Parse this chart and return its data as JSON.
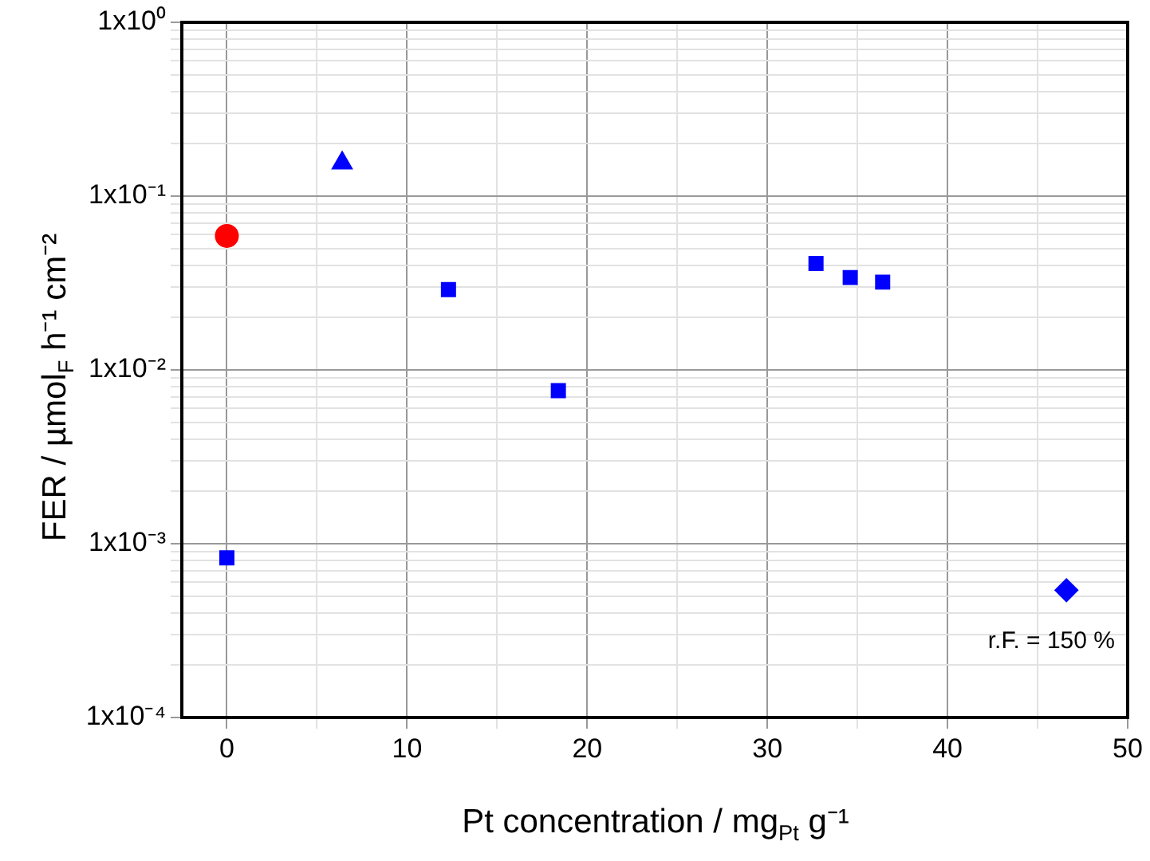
{
  "chart_data": {
    "type": "scatter",
    "xlabel": "Pt concentration / mg$_{Pt}$ g⁻¹",
    "ylabel": "FER / µmol$_{F}$ h⁻¹ cm⁻²",
    "log": "y",
    "grid": true,
    "legend": false,
    "xlim": [
      -2.5,
      50
    ],
    "xticks": [
      0,
      {
        "value": 5,
        "label": null
      },
      10,
      {
        "value": 15,
        "label": null
      },
      20,
      {
        "value": 25,
        "label": null
      },
      30,
      {
        "value": 35,
        "label": null
      },
      40,
      {
        "value": 45,
        "label": null
      },
      50
    ],
    "ylim": [
      0.0001,
      1
    ],
    "yticks": [
      {
        "value": 0.0001,
        "label": "1x10⁻⁴"
      },
      {
        "value": 0.0002,
        "label": null
      },
      {
        "value": 0.0003,
        "label": null
      },
      {
        "value": 0.0004,
        "label": null
      },
      {
        "value": 0.0005,
        "label": null
      },
      {
        "value": 0.0006,
        "label": null
      },
      {
        "value": 0.0007,
        "label": null
      },
      {
        "value": 0.0008,
        "label": null
      },
      {
        "value": 0.0009,
        "label": null
      },
      {
        "value": 0.001,
        "label": "1x10⁻³"
      },
      {
        "value": 0.002,
        "label": null
      },
      {
        "value": 0.003,
        "label": null
      },
      {
        "value": 0.004,
        "label": null
      },
      {
        "value": 0.005,
        "label": null
      },
      {
        "value": 0.006,
        "label": null
      },
      {
        "value": 0.007,
        "label": null
      },
      {
        "value": 0.008,
        "label": null
      },
      {
        "value": 0.009,
        "label": null
      },
      {
        "value": 0.01,
        "label": "1x10⁻²"
      },
      {
        "value": 0.02,
        "label": null
      },
      {
        "value": 0.03,
        "label": null
      },
      {
        "value": 0.04,
        "label": null
      },
      {
        "value": 0.05,
        "label": null
      },
      {
        "value": 0.06,
        "label": null
      },
      {
        "value": 0.07,
        "label": null
      },
      {
        "value": 0.08,
        "label": null
      },
      {
        "value": 0.09,
        "label": null
      },
      {
        "value": 0.1,
        "label": "1x10⁻¹"
      },
      {
        "value": 0.2,
        "label": null
      },
      {
        "value": 0.3,
        "label": null
      },
      {
        "value": 0.4,
        "label": null
      },
      {
        "value": 0.5,
        "label": null
      },
      {
        "value": 0.6,
        "label": null
      },
      {
        "value": 0.7,
        "label": null
      },
      {
        "value": 0.8,
        "label": null
      },
      {
        "value": 0.9,
        "label": null
      },
      {
        "value": 1,
        "label": "1x10⁰"
      }
    ],
    "annotations": [
      "r.F. = 150 %"
    ],
    "series": [
      {
        "color": "#ff0000",
        "marker": "circle",
        "x": [
          0
        ],
        "values": [
          0.059
        ]
      },
      {
        "color": "#0000ff",
        "marker": "triangle",
        "x": [
          6.4
        ],
        "values": [
          0.155
        ]
      },
      {
        "color": "#0000ff",
        "marker": "square",
        "x": [
          0,
          12.3,
          18.4,
          32.7,
          34.6,
          36.4
        ],
        "values": [
          0.00083,
          0.029,
          0.0076,
          0.041,
          0.034,
          0.032
        ]
      },
      {
        "color": "#0000ff",
        "marker": "diamond",
        "x": [
          46.6
        ],
        "values": [
          0.00054
        ]
      }
    ]
  }
}
